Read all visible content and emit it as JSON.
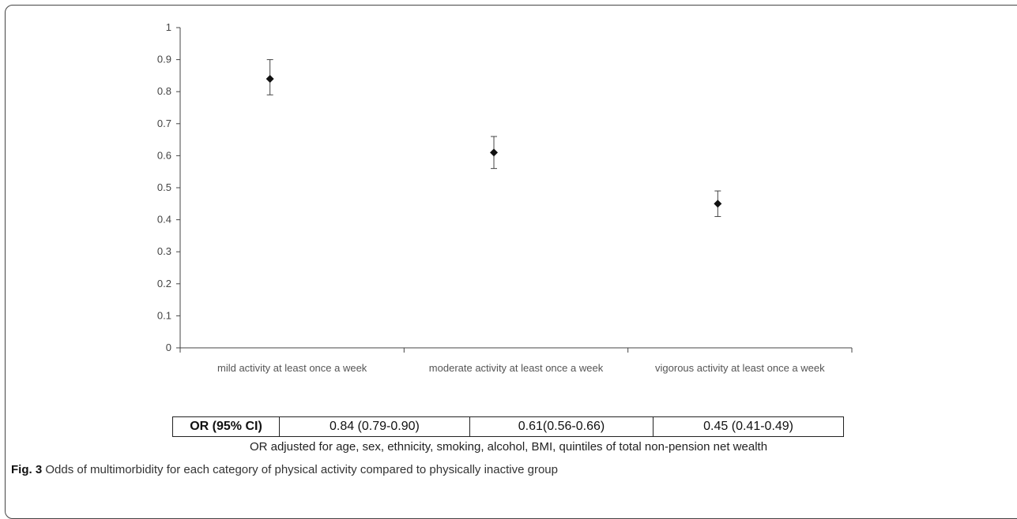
{
  "chart_data": {
    "type": "scatter",
    "categories": [
      "mild activity at least once a week",
      "moderate activity at least once a week",
      "vigorous activity at least once a week"
    ],
    "values": [
      0.84,
      0.61,
      0.45
    ],
    "ci_lower": [
      0.79,
      0.56,
      0.41
    ],
    "ci_upper": [
      0.9,
      0.66,
      0.49
    ],
    "ylim": [
      0,
      1
    ],
    "yticks": [
      "0",
      "0.1",
      "0.2",
      "0.3",
      "0.4",
      "0.5",
      "0.6",
      "0.7",
      "0.8",
      "0.9",
      "1"
    ],
    "marker": "diamond",
    "grid": false,
    "colors": {
      "marker": "#111111",
      "axis": "#444444"
    }
  },
  "table": {
    "header": "OR (95% CI)",
    "cells": [
      "0.84 (0.79-0.90)",
      "0.61(0.56-0.66)",
      "0.45 (0.41-0.49)"
    ]
  },
  "note": "OR adjusted for age, sex, ethnicity, smoking, alcohol, BMI, quintiles of total non-pension net wealth",
  "caption": {
    "label": "Fig. 3",
    "text": "Odds of multimorbidity for each category of physical activity compared to physically inactive group"
  }
}
